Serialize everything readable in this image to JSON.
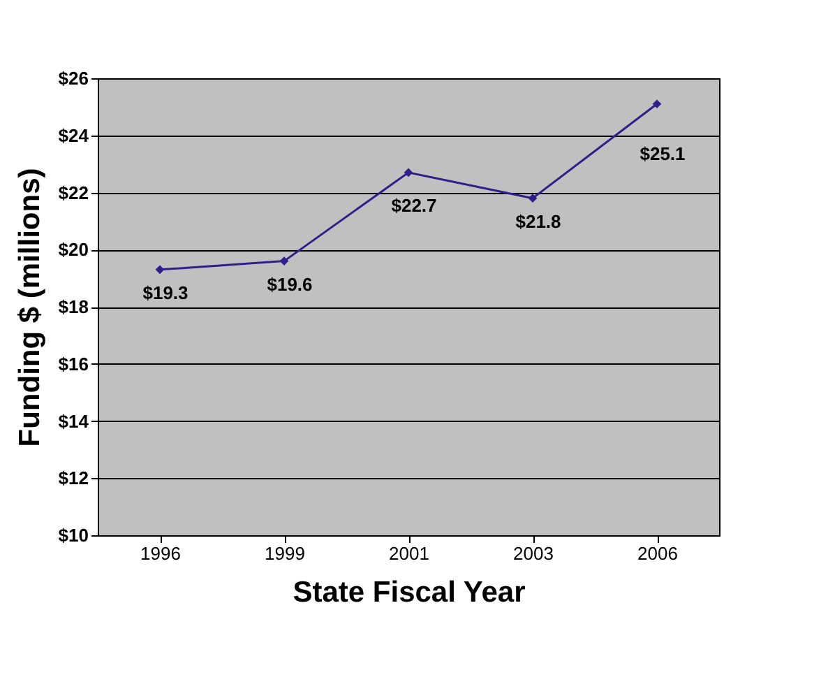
{
  "chart_data": {
    "type": "line",
    "xlabel": "State Fiscal Year",
    "ylabel": "Funding $ (millions)",
    "categories": [
      "1996",
      "1999",
      "2001",
      "2003",
      "2006"
    ],
    "series": [
      {
        "color": "#2e1f8a",
        "values": [
          19.3,
          19.6,
          22.7,
          21.8,
          25.1
        ],
        "value_labels": [
          "$19.3",
          "$19.6",
          "$22.7",
          "$21.8",
          "$25.1"
        ]
      }
    ],
    "ylim": [
      10,
      26
    ],
    "yticks": [
      {
        "value": 10,
        "label": "$10"
      },
      {
        "value": 12,
        "label": "$12"
      },
      {
        "value": 14,
        "label": "$14"
      },
      {
        "value": 16,
        "label": "$16"
      },
      {
        "value": 18,
        "label": "$18"
      },
      {
        "value": 20,
        "label": "$20"
      },
      {
        "value": 22,
        "label": "$22"
      },
      {
        "value": 24,
        "label": "$24"
      },
      {
        "value": 26,
        "label": "$26"
      }
    ],
    "grid": "y",
    "marker": "diamond",
    "line_style": "solid"
  }
}
